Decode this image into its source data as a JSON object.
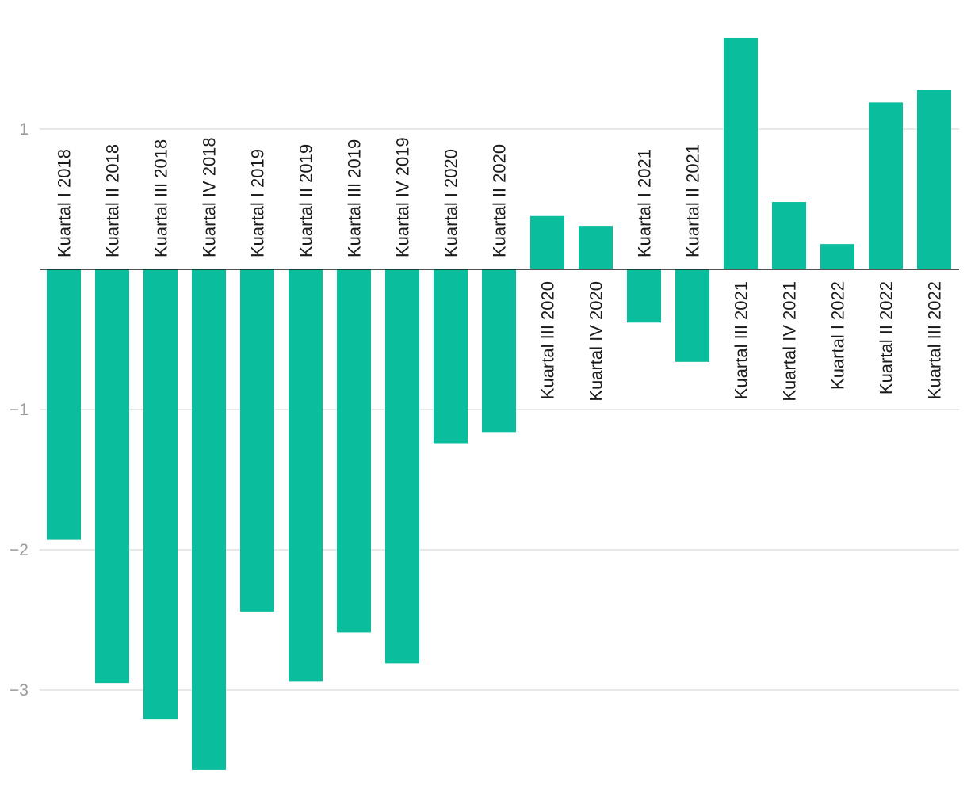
{
  "chart_data": {
    "type": "bar",
    "title": "",
    "xlabel": "",
    "ylabel": "",
    "ylim": [
      -3.75,
      1.85
    ],
    "yticks": [
      1,
      -1,
      -2,
      -3
    ],
    "ytick_labels": [
      "1",
      "−1",
      "−2",
      "−3"
    ],
    "grid": true,
    "legend": "none",
    "colors": {
      "bar": "#0abd9d",
      "grid": "#e1e1e1",
      "axis": "#1a1a1a",
      "tick_text": "#9a9a9a",
      "label_text": "#1c1c1c"
    },
    "categories": [
      "Kuartal I 2018",
      "Kuartal II 2018",
      "Kuartal III 2018",
      "Kuartal IV 2018",
      "Kuartal I 2019",
      "Kuartal II 2019",
      "Kuartal III 2019",
      "Kuartal IV 2019",
      "Kuartal I 2020",
      "Kuartal II 2020",
      "Kuartal III 2020",
      "Kuartal IV 2020",
      "Kuartal I 2021",
      "Kuartal II 2021",
      "Kuartal III 2021",
      "Kuartal IV 2021",
      "Kuartal I 2022",
      "Kuartal II 2022",
      "Kuartal III 2022"
    ],
    "values": [
      -1.93,
      -2.95,
      -3.21,
      -3.57,
      -2.44,
      -2.94,
      -2.59,
      -2.81,
      -1.24,
      -1.16,
      0.38,
      0.31,
      -0.38,
      -0.66,
      1.65,
      0.48,
      0.18,
      1.19,
      1.28
    ]
  }
}
